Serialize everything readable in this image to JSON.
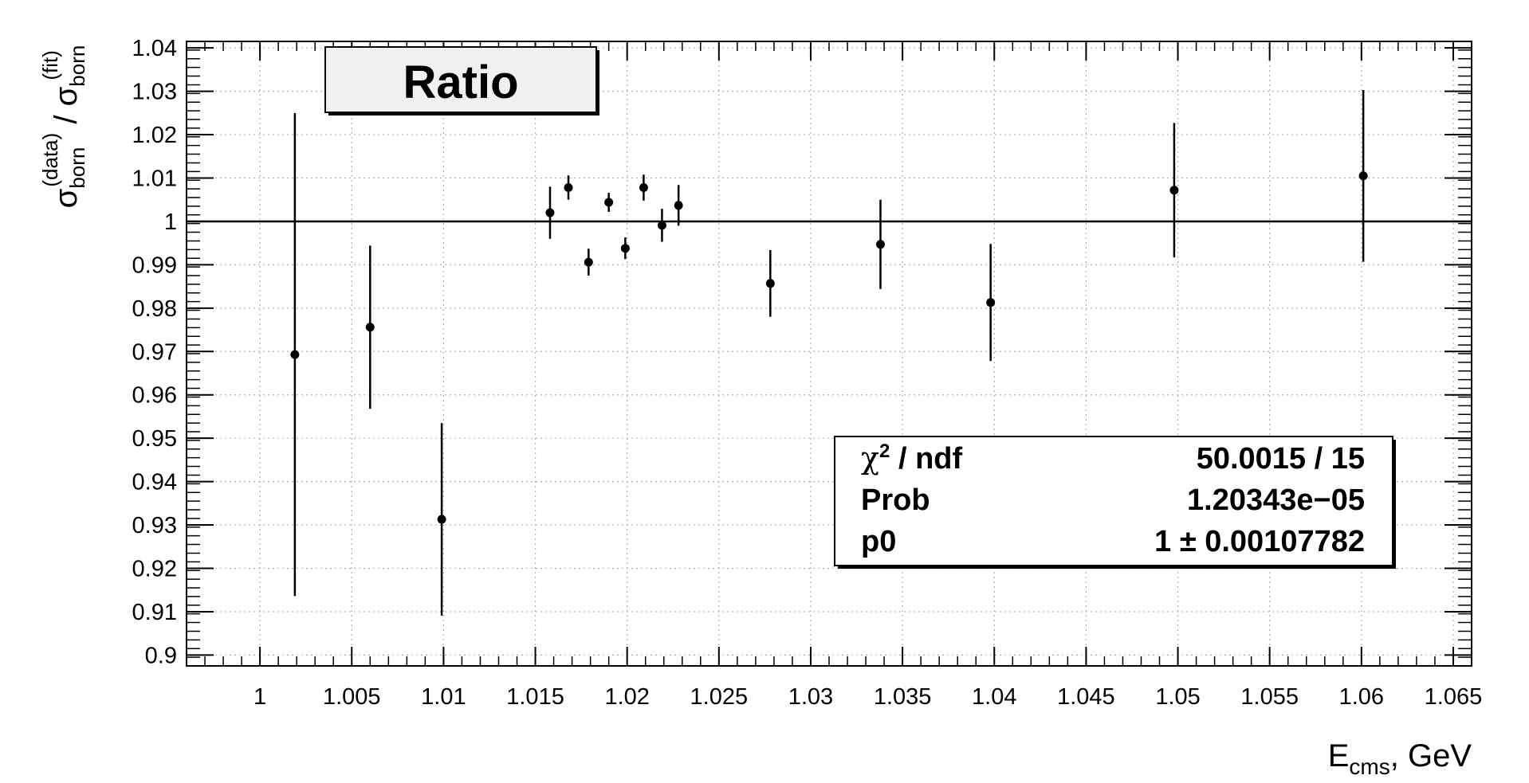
{
  "chart_data": {
    "type": "scatter",
    "title": "Ratio",
    "xlabel": {
      "main": "E",
      "sub": "cms",
      "suffix": ", GeV"
    },
    "ylabel": {
      "num_main": "σ",
      "num_sub": "born",
      "num_sup": "(data)",
      "sep": " / ",
      "den_main": "σ",
      "den_sub": "born",
      "den_sup": "(fit)"
    },
    "xlim": [
      0.996,
      1.066
    ],
    "ylim": [
      0.8975,
      1.0415
    ],
    "x_ticks": [
      1,
      1.005,
      1.01,
      1.015,
      1.02,
      1.025,
      1.03,
      1.035,
      1.04,
      1.045,
      1.05,
      1.055,
      1.06,
      1.065
    ],
    "x_tick_labels": [
      "1",
      "1.005",
      "1.01",
      "1.015",
      "1.02",
      "1.025",
      "1.03",
      "1.035",
      "1.04",
      "1.045",
      "1.05",
      "1.055",
      "1.06",
      "1.065"
    ],
    "y_ticks": [
      0.9,
      0.91,
      0.92,
      0.93,
      0.94,
      0.95,
      0.96,
      0.97,
      0.98,
      0.99,
      1,
      1.01,
      1.02,
      1.03,
      1.04
    ],
    "y_tick_labels": [
      "0.9",
      "0.91",
      "0.92",
      "0.93",
      "0.94",
      "0.95",
      "0.96",
      "0.97",
      "0.98",
      "0.99",
      "1",
      "1.01",
      "1.02",
      "1.03",
      "1.04"
    ],
    "grid": true,
    "fit_line": {
      "y": 1.0
    },
    "points": [
      {
        "x": 1.0019,
        "y": 0.9693,
        "err": 0.0557
      },
      {
        "x": 1.006,
        "y": 0.9756,
        "err": 0.0188
      },
      {
        "x": 1.0099,
        "y": 0.9313,
        "err": 0.0222
      },
      {
        "x": 1.0158,
        "y": 1.002,
        "err": 0.006
      },
      {
        "x": 1.0168,
        "y": 1.0078,
        "err": 0.0028
      },
      {
        "x": 1.0179,
        "y": 0.9906,
        "err": 0.0031
      },
      {
        "x": 1.019,
        "y": 1.0044,
        "err": 0.0022
      },
      {
        "x": 1.0199,
        "y": 0.9938,
        "err": 0.0025
      },
      {
        "x": 1.0209,
        "y": 1.0078,
        "err": 0.003
      },
      {
        "x": 1.0219,
        "y": 0.9991,
        "err": 0.0038
      },
      {
        "x": 1.0228,
        "y": 1.0037,
        "err": 0.0047
      },
      {
        "x": 1.0278,
        "y": 0.9857,
        "err": 0.0077
      },
      {
        "x": 1.0338,
        "y": 0.9947,
        "err": 0.0103
      },
      {
        "x": 1.0398,
        "y": 0.9813,
        "err": 0.0135
      },
      {
        "x": 1.0498,
        "y": 1.0072,
        "err": 0.0155
      },
      {
        "x": 1.0601,
        "y": 1.0105,
        "err": 0.0198
      }
    ],
    "stats": {
      "rows": [
        {
          "label_main": "χ",
          "label_sup": "2",
          "label_rest": " / ndf",
          "value": "50.0015 / 15"
        },
        {
          "label_main": "Prob",
          "label_sup": "",
          "label_rest": "",
          "value": "1.20343e−05"
        },
        {
          "label_main": "p0",
          "label_sup": "",
          "label_rest": "",
          "value": "1 ± 0.00107782"
        }
      ]
    }
  }
}
